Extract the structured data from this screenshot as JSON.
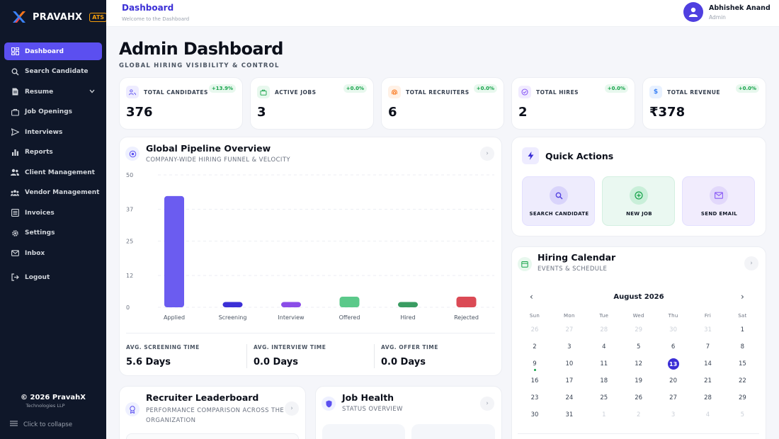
{
  "brand": {
    "name": "PRAVAHX",
    "badge": "ATS"
  },
  "sidebar": {
    "items": [
      {
        "label": "Dashboard",
        "icon": "dashboard-icon",
        "active": true
      },
      {
        "label": "Search Candidate",
        "icon": "search-icon"
      },
      {
        "label": "Resume",
        "icon": "document-icon",
        "has_caret": true
      },
      {
        "label": "Job Openings",
        "icon": "briefcase-icon"
      },
      {
        "label": "Interviews",
        "icon": "send-icon"
      },
      {
        "label": "Reports",
        "icon": "bar-chart-icon"
      },
      {
        "label": "Client Management",
        "icon": "users-icon"
      },
      {
        "label": "Vendor Management",
        "icon": "group-icon"
      },
      {
        "label": "Invoices",
        "icon": "list-icon"
      },
      {
        "label": "Settings",
        "icon": "gear-icon"
      },
      {
        "label": "Inbox",
        "icon": "mail-icon"
      }
    ],
    "logout": "Logout",
    "copyright": "© 2026 PravahX",
    "company": "Technologies LLP",
    "collapse": "Click to collapse"
  },
  "header": {
    "title": "Dashboard",
    "subtitle": "Welcome to the Dashboard",
    "user_name": "Abhishek Anand",
    "user_role": "Admin"
  },
  "page": {
    "title": "Admin Dashboard",
    "subtitle": "GLOBAL HIRING VISIBILITY & CONTROL"
  },
  "stats": [
    {
      "label": "TOTAL CANDIDATES",
      "value": "376",
      "change": "+13.9%",
      "icon": "users-icon",
      "color": "#5b4ff0"
    },
    {
      "label": "ACTIVE JOBS",
      "value": "3",
      "change": "+0.0%",
      "icon": "briefcase-icon",
      "color": "#16a34a"
    },
    {
      "label": "TOTAL RECRUITERS",
      "value": "6",
      "change": "+0.0%",
      "icon": "fingerprint-icon",
      "color": "#f97316"
    },
    {
      "label": "TOTAL HIRES",
      "value": "2",
      "change": "+0.0%",
      "icon": "check-circle-icon",
      "color": "#8b5cf6"
    },
    {
      "label": "TOTAL REVENUE",
      "value": "₹378",
      "change": "+0.0%",
      "icon": "dollar-icon",
      "color": "#3b82f6"
    }
  ],
  "pipeline": {
    "title": "Global Pipeline Overview",
    "subtitle": "COMPANY-WIDE HIRING FUNNEL & VELOCITY",
    "metrics": [
      {
        "label": "AVG. SCREENING TIME",
        "value": "5.6 Days"
      },
      {
        "label": "AVG. INTERVIEW TIME",
        "value": "0.0 Days"
      },
      {
        "label": "AVG. OFFER TIME",
        "value": "0.0 Days"
      }
    ]
  },
  "chart_data": {
    "type": "bar",
    "categories": [
      "Applied",
      "Screening",
      "Interview",
      "Offered",
      "Hired",
      "Rejected"
    ],
    "values": [
      42,
      2,
      2,
      4,
      2,
      4
    ],
    "colors": [
      "#6b5cf0",
      "#3b2fd6",
      "#8b4de8",
      "#5bc98a",
      "#3a9c62",
      "#db4a55"
    ],
    "yticks": [
      "0",
      "12",
      "25",
      "37",
      "50"
    ],
    "ylim": [
      0,
      50
    ],
    "grid": true
  },
  "quick_actions": {
    "title": "Quick Actions",
    "items": [
      {
        "label": "SEARCH CANDIDATE",
        "icon": "search-icon",
        "color": "#5b4ff0"
      },
      {
        "label": "NEW JOB",
        "icon": "plus-circle-icon",
        "color": "#16a34a"
      },
      {
        "label": "SEND EMAIL",
        "icon": "mail-icon",
        "color": "#8b5cf6"
      }
    ]
  },
  "calendar": {
    "title": "Hiring Calendar",
    "subtitle": "EVENTS & SCHEDULE",
    "month": "August 2026",
    "dow": [
      "Sun",
      "Mon",
      "Tue",
      "Wed",
      "Thu",
      "Fri",
      "Sat"
    ],
    "weeks": [
      [
        "26",
        "27",
        "28",
        "29",
        "30",
        "31",
        "1"
      ],
      [
        "2",
        "3",
        "4",
        "5",
        "6",
        "7",
        "8"
      ],
      [
        "9",
        "10",
        "11",
        "12",
        "13",
        "14",
        "15"
      ],
      [
        "16",
        "17",
        "18",
        "19",
        "20",
        "21",
        "22"
      ],
      [
        "23",
        "24",
        "25",
        "26",
        "27",
        "28",
        "29"
      ],
      [
        "30",
        "31",
        "1",
        "2",
        "3",
        "4",
        "5"
      ]
    ],
    "today": "13",
    "event_day": "9"
  },
  "leaderboard": {
    "title": "Recruiter Leaderboard",
    "subtitle": "PERFORMANCE COMPARISON ACROSS THE ORGANIZATION"
  },
  "job_health": {
    "title": "Job Health",
    "subtitle": "STATUS OVERVIEW"
  }
}
